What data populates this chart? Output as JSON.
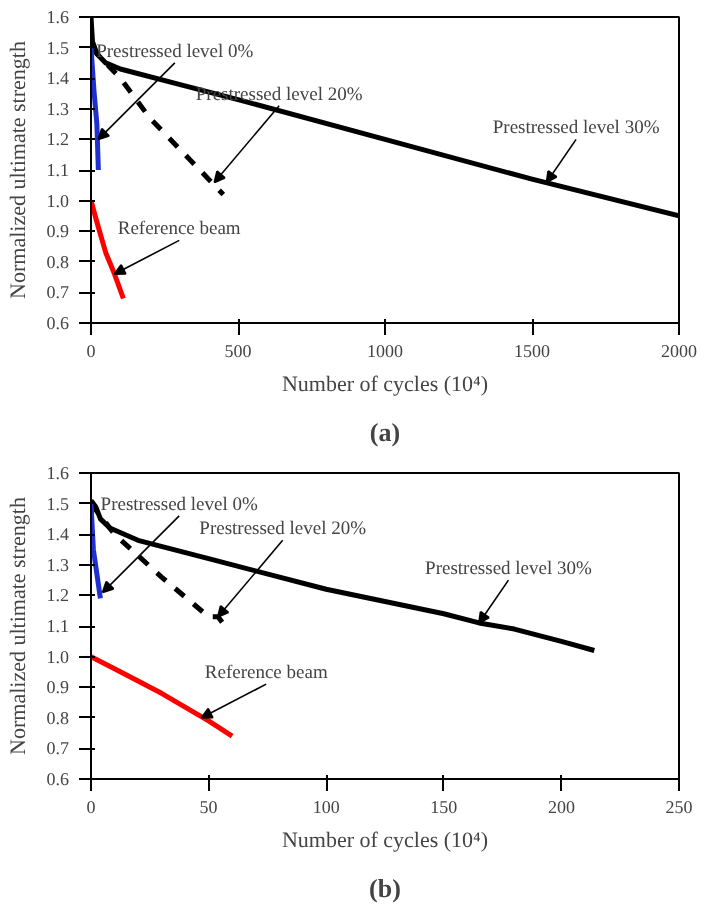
{
  "chart_data": [
    {
      "type": "line",
      "title": "(a)",
      "xlabel": "Number of cycles (10⁴)",
      "ylabel": "Normalized ultimate strength",
      "xlim": [
        0,
        2000
      ],
      "ylim": [
        0.6,
        1.6
      ],
      "xticks": [
        0,
        500,
        1000,
        1500,
        2000
      ],
      "yticks": [
        {
          "value": 0.6,
          "label": "0.6"
        },
        {
          "value": 0.7,
          "label": "0.7"
        },
        {
          "value": 0.8,
          "label": "0.8"
        },
        {
          "value": 0.9,
          "label": "0.9"
        },
        {
          "value": 1.0,
          "label": "1.0"
        },
        {
          "value": 1.1,
          "label": "1.1"
        },
        {
          "value": 1.2,
          "label": "1.2"
        },
        {
          "value": 1.3,
          "label": "1.3"
        },
        {
          "value": 1.4,
          "label": "1.4"
        },
        {
          "value": 1.5,
          "label": "1.5"
        },
        {
          "value": 1.6,
          "label": "1.6"
        }
      ],
      "grid": false,
      "series": [
        {
          "color": "#000000",
          "x": [
            0,
            5,
            20,
            50,
            100,
            300,
            500,
            1000,
            1500,
            2000
          ],
          "values": [
            1.6,
            1.52,
            1.48,
            1.45,
            1.43,
            1.38,
            1.33,
            1.2,
            1.07,
            0.95
          ]
        },
        {
          "color": "#000000",
          "line_style": "dashed",
          "x": [
            0,
            100,
            200,
            300,
            400,
            450
          ],
          "values": [
            1.5,
            1.4,
            1.27,
            1.17,
            1.07,
            1.02
          ]
        },
        {
          "color": "#1f2fd0",
          "x": [
            0,
            10,
            20,
            25
          ],
          "values": [
            1.5,
            1.36,
            1.25,
            1.1
          ]
        },
        {
          "color": "#ff0000",
          "x": [
            0,
            20,
            50,
            80,
            110
          ],
          "values": [
            1.0,
            0.93,
            0.83,
            0.76,
            0.68
          ]
        }
      ],
      "annotations": [
        {
          "text": "Prestressed level 0%",
          "x": 25,
          "y": 1.2
        },
        {
          "text": "Prestressed level 20%",
          "x": 420,
          "y": 1.06
        },
        {
          "text": "Prestressed level 30%",
          "x": 1550,
          "y": 1.06
        },
        {
          "text": "Reference beam",
          "x": 80,
          "y": 0.76
        }
      ]
    },
    {
      "type": "line",
      "title": "(b)",
      "xlabel": "Number of cycles (10⁴)",
      "ylabel": "Normalized ultimate strength",
      "xlim": [
        0,
        250
      ],
      "ylim": [
        0.6,
        1.6
      ],
      "xticks": [
        0,
        50,
        100,
        150,
        200,
        250
      ],
      "yticks": [
        {
          "value": 0.6,
          "label": "0.6"
        },
        {
          "value": 0.7,
          "label": "0.7"
        },
        {
          "value": 0.8,
          "label": "0.8"
        },
        {
          "value": 0.9,
          "label": "0.9"
        },
        {
          "value": 1.0,
          "label": "1.0"
        },
        {
          "value": 1.1,
          "label": "1.1"
        },
        {
          "value": 1.2,
          "label": "1.2"
        },
        {
          "value": 1.3,
          "label": "1.3"
        },
        {
          "value": 1.4,
          "label": "1.4"
        },
        {
          "value": 1.5,
          "label": "1.5"
        },
        {
          "value": 1.6,
          "label": "1.6"
        }
      ],
      "grid": false,
      "series": [
        {
          "color": "#000000",
          "x": [
            0,
            2,
            4,
            8,
            20,
            50,
            100,
            150,
            165,
            180,
            200,
            214
          ],
          "values": [
            1.51,
            1.49,
            1.45,
            1.42,
            1.38,
            1.32,
            1.22,
            1.14,
            1.11,
            1.09,
            1.05,
            1.02
          ]
        },
        {
          "color": "#000000",
          "line_style": "dashed",
          "x": [
            0,
            10,
            30,
            50,
            54,
            57
          ],
          "values": [
            1.5,
            1.4,
            1.26,
            1.13,
            1.13,
            1.1
          ]
        },
        {
          "color": "#1f2fd0",
          "x": [
            0,
            1,
            4
          ],
          "values": [
            1.5,
            1.35,
            1.19
          ]
        },
        {
          "color": "#ff0000",
          "x": [
            0,
            10,
            30,
            50,
            60
          ],
          "values": [
            1.0,
            0.96,
            0.88,
            0.79,
            0.74
          ]
        }
      ],
      "annotations": [
        {
          "text": "Prestressed level 0%",
          "x": 5,
          "y": 1.21
        },
        {
          "text": "Prestressed level 20%",
          "x": 54,
          "y": 1.13
        },
        {
          "text": "Prestressed level 30%",
          "x": 165,
          "y": 1.11
        },
        {
          "text": "Reference beam",
          "x": 47,
          "y": 0.8
        }
      ]
    }
  ]
}
